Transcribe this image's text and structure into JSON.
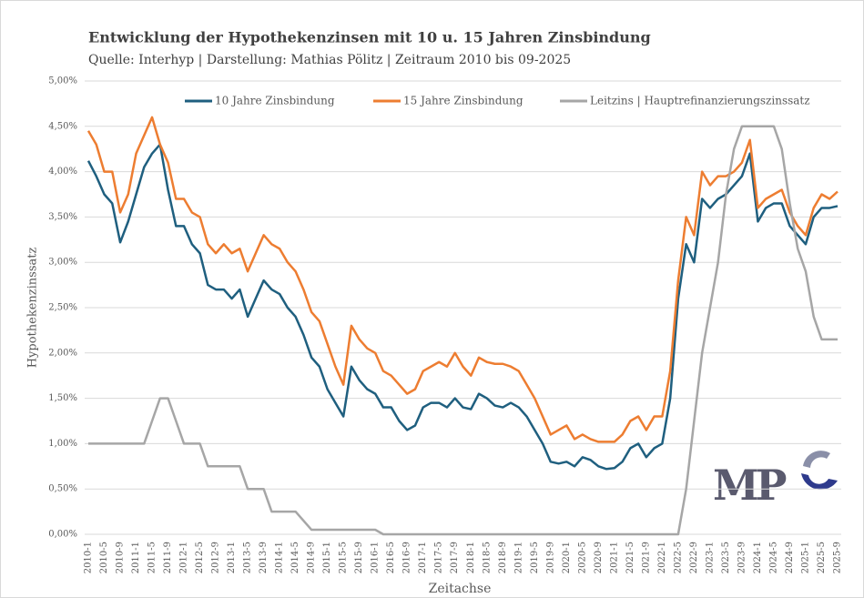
{
  "chart_data": {
    "type": "line",
    "title": "Entwicklung der Hypothekenzinsen mit 10 u. 15 Jahren Zinsbindung",
    "subtitle": "Quelle: Interhyp | Darstellung: Mathias Pölitz | Zeitraum 2010 bis 09-2025",
    "y_label": "Hypothekenzinssatz",
    "x_label": "Zeitachse",
    "logo_text": "MP",
    "grid": true,
    "legend": "top",
    "categories": [
      "2010-1",
      null,
      "2010-5",
      null,
      "2010-9",
      null,
      "2011-1",
      null,
      "2011-5",
      null,
      "2011-9",
      null,
      "2012-1",
      null,
      "2012-5",
      null,
      "2012-9",
      null,
      "2013-1",
      null,
      "2013-5",
      null,
      "2013-9",
      null,
      "2014-1",
      null,
      "2014-5",
      null,
      "2014-9",
      null,
      "2015-1",
      null,
      "2015-5",
      null,
      "2015-9",
      null,
      "2016-1",
      null,
      "2016-5",
      null,
      "2016-9",
      null,
      "2017-1",
      null,
      "2017-5",
      null,
      "2017-9",
      null,
      "2018-1",
      null,
      "2018-5",
      null,
      "2018-9",
      null,
      "2019-1",
      null,
      "2019-5",
      null,
      "2019-9",
      null,
      "2020-1",
      null,
      "2020-5",
      null,
      "2020-9",
      null,
      "2021-1",
      null,
      "2021-5",
      null,
      "2021-9",
      null,
      "2022-1",
      null,
      "2022-5",
      null,
      "2022-9",
      null,
      "2023-1",
      null,
      "2023-5",
      null,
      "2023-9",
      null,
      "2024-1",
      null,
      "2024-5",
      null,
      "2024-9",
      null,
      "2025-1",
      null,
      "2025-5",
      null,
      "2025-9"
    ],
    "series": [
      {
        "name": "10 Jahre Zinsbindung",
        "color": "#1f5f7f",
        "values": [
          4.12,
          3.95,
          3.75,
          3.65,
          3.22,
          3.45,
          3.75,
          4.05,
          4.2,
          4.3,
          3.8,
          3.4,
          3.4,
          3.2,
          3.1,
          2.75,
          2.7,
          2.7,
          2.6,
          2.7,
          2.4,
          2.6,
          2.8,
          2.7,
          2.65,
          2.5,
          2.4,
          2.2,
          1.95,
          1.85,
          1.6,
          1.45,
          1.3,
          1.85,
          1.7,
          1.6,
          1.55,
          1.4,
          1.4,
          1.25,
          1.15,
          1.2,
          1.4,
          1.45,
          1.45,
          1.4,
          1.5,
          1.4,
          1.38,
          1.55,
          1.5,
          1.42,
          1.4,
          1.45,
          1.4,
          1.3,
          1.15,
          1.0,
          0.8,
          0.78,
          0.8,
          0.75,
          0.85,
          0.82,
          0.75,
          0.72,
          0.73,
          0.8,
          0.95,
          1.0,
          0.85,
          0.95,
          1.0,
          1.5,
          2.6,
          3.2,
          3.0,
          3.7,
          3.6,
          3.7,
          3.75,
          3.85,
          3.95,
          4.2,
          3.45,
          3.6,
          3.65,
          3.65,
          3.4,
          3.3,
          3.2,
          3.5,
          3.6,
          3.6,
          3.62
        ]
      },
      {
        "name": "15 Jahre Zinsbindung",
        "color": "#ed7d31",
        "values": [
          4.45,
          4.3,
          4.0,
          4.0,
          3.55,
          3.75,
          4.2,
          4.4,
          4.6,
          4.3,
          4.1,
          3.7,
          3.7,
          3.55,
          3.5,
          3.2,
          3.1,
          3.2,
          3.1,
          3.15,
          2.9,
          3.1,
          3.3,
          3.2,
          3.15,
          3.0,
          2.9,
          2.7,
          2.45,
          2.35,
          2.1,
          1.85,
          1.65,
          2.3,
          2.15,
          2.05,
          2.0,
          1.8,
          1.75,
          1.65,
          1.55,
          1.6,
          1.8,
          1.85,
          1.9,
          1.85,
          2.0,
          1.85,
          1.75,
          1.95,
          1.9,
          1.88,
          1.88,
          1.85,
          1.8,
          1.65,
          1.5,
          1.3,
          1.1,
          1.15,
          1.2,
          1.05,
          1.1,
          1.05,
          1.02,
          1.02,
          1.02,
          1.1,
          1.25,
          1.3,
          1.15,
          1.3,
          1.3,
          1.8,
          2.8,
          3.5,
          3.3,
          4.0,
          3.85,
          3.95,
          3.95,
          4.0,
          4.1,
          4.35,
          3.6,
          3.7,
          3.75,
          3.8,
          3.55,
          3.4,
          3.3,
          3.6,
          3.75,
          3.7,
          3.78
        ]
      },
      {
        "name": "Leitzins | Hauptrefinanzierungszinssatz",
        "color": "#a6a6a6",
        "values": [
          1,
          1,
          1,
          1,
          1,
          1,
          1,
          1,
          1.25,
          1.5,
          1.5,
          1.25,
          1,
          1,
          1,
          0.75,
          0.75,
          0.75,
          0.75,
          0.75,
          0.5,
          0.5,
          0.5,
          0.25,
          0.25,
          0.25,
          0.25,
          0.15,
          0.05,
          0.05,
          0.05,
          0.05,
          0.05,
          0.05,
          0.05,
          0.05,
          0.05,
          0,
          0,
          0,
          0,
          0,
          0,
          0,
          0,
          0,
          0,
          0,
          0,
          0,
          0,
          0,
          0,
          0,
          0,
          0,
          0,
          0,
          0,
          0,
          0,
          0,
          0,
          0,
          0,
          0,
          0,
          0,
          0,
          0,
          0,
          0,
          0,
          0,
          0,
          0.5,
          1.25,
          2.0,
          2.5,
          3.0,
          3.75,
          4.25,
          4.5,
          4.5,
          4.5,
          4.5,
          4.5,
          4.25,
          3.65,
          3.15,
          2.9,
          2.4,
          2.15,
          2.15,
          2.15
        ]
      }
    ],
    "ylim": [
      0,
      5
    ],
    "yticks": [
      {
        "value": 0,
        "label": "0,00%"
      },
      {
        "value": 0.5,
        "label": "0,50%"
      },
      {
        "value": 1,
        "label": "1,00%"
      },
      {
        "value": 1.5,
        "label": "1,50%"
      },
      {
        "value": 2,
        "label": "2,00%"
      },
      {
        "value": 2.5,
        "label": "2,50%"
      },
      {
        "value": 3,
        "label": "3,00%"
      },
      {
        "value": 3.5,
        "label": "3,50%"
      },
      {
        "value": 4,
        "label": "4,00%"
      },
      {
        "value": 4.5,
        "label": "4,50%"
      },
      {
        "value": 5,
        "label": "5,00%"
      }
    ]
  }
}
